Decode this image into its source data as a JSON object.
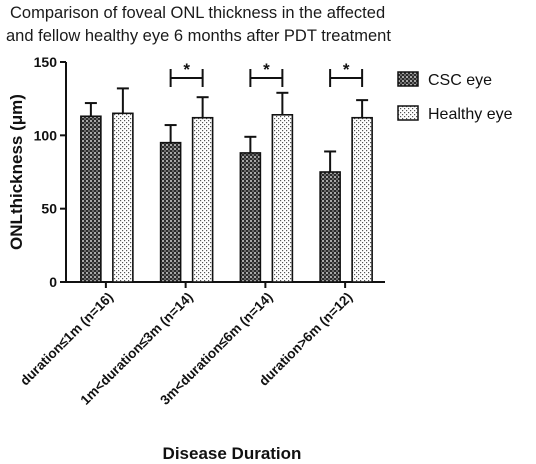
{
  "chart_data": {
    "type": "bar",
    "title_lines": [
      "Comparison of foveal ONL thickness in the affected",
      "and fellow healthy eye 6 months after PDT treatment"
    ],
    "xlabel": "Disease Duration",
    "ylabel": "ONLthickness (μm)",
    "ylim": [
      0,
      150
    ],
    "yticks": [
      0,
      50,
      100,
      150
    ],
    "categories": [
      "duration≤1m (n=16)",
      "1m<duration≤3m (n=14)",
      "3m<duration≤6m (n=14)",
      "duration>6m (n=12)"
    ],
    "series": [
      {
        "name": "CSC eye",
        "values": [
          113,
          95,
          88,
          75
        ],
        "errors": [
          9,
          12,
          11,
          14
        ],
        "pattern": "checker"
      },
      {
        "name": "Healthy eye",
        "values": [
          115,
          112,
          114,
          112
        ],
        "errors": [
          17,
          14,
          15,
          12
        ],
        "pattern": "dots"
      }
    ],
    "significance": [
      {
        "category_index": 1,
        "label": "*"
      },
      {
        "category_index": 2,
        "label": "*"
      },
      {
        "category_index": 3,
        "label": "*"
      }
    ],
    "legend_position": "right",
    "grid": false
  }
}
